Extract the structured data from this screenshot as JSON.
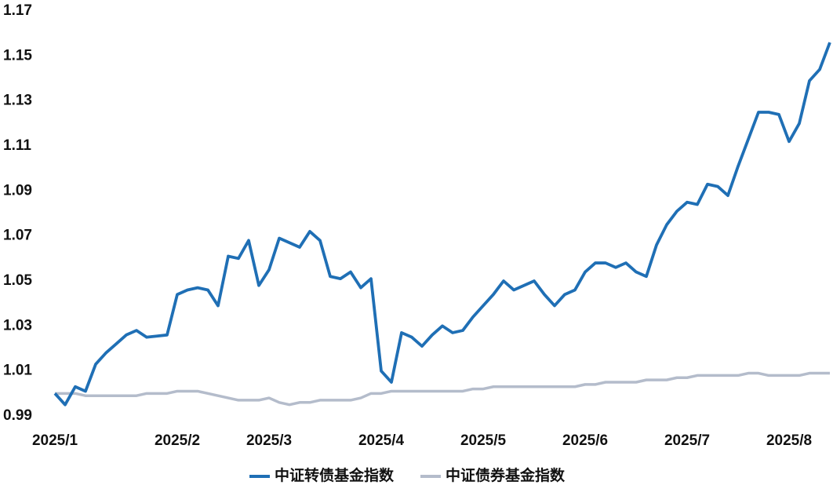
{
  "chart_data": {
    "type": "line",
    "categories": [
      "2025/1",
      null,
      null,
      null,
      null,
      null,
      null,
      null,
      null,
      null,
      null,
      null,
      "2025/2",
      null,
      null,
      null,
      null,
      null,
      null,
      null,
      null,
      "2025/3",
      null,
      null,
      null,
      null,
      null,
      null,
      null,
      null,
      null,
      null,
      "2025/4",
      null,
      null,
      null,
      null,
      null,
      null,
      null,
      null,
      null,
      "2025/5",
      null,
      null,
      null,
      null,
      null,
      null,
      null,
      null,
      null,
      "2025/6",
      null,
      null,
      null,
      null,
      null,
      null,
      null,
      null,
      null,
      "2025/7",
      null,
      null,
      null,
      null,
      null,
      null,
      null,
      null,
      null,
      "2025/8",
      null,
      null,
      null,
      null
    ],
    "series": [
      {
        "name": "中证转债基金指数",
        "color": "#1f6fb5",
        "values": [
          1.0,
          0.995,
          1.003,
          1.001,
          1.013,
          1.018,
          1.022,
          1.026,
          1.028,
          1.025,
          1.0255,
          1.026,
          1.044,
          1.046,
          1.047,
          1.046,
          1.039,
          1.061,
          1.06,
          1.068,
          1.048,
          1.055,
          1.069,
          1.067,
          1.065,
          1.072,
          1.068,
          1.052,
          1.051,
          1.054,
          1.047,
          1.051,
          1.01,
          1.005,
          1.027,
          1.025,
          1.021,
          1.026,
          1.03,
          1.027,
          1.028,
          1.034,
          1.039,
          1.044,
          1.05,
          1.046,
          1.048,
          1.05,
          1.044,
          1.039,
          1.044,
          1.046,
          1.054,
          1.058,
          1.058,
          1.056,
          1.058,
          1.054,
          1.052,
          1.066,
          1.075,
          1.081,
          1.085,
          1.084,
          1.093,
          1.092,
          1.088,
          1.101,
          1.113,
          1.125,
          1.125,
          1.124,
          1.112,
          1.12,
          1.139,
          1.144,
          1.156
        ]
      },
      {
        "name": "中证债券基金指数",
        "color": "#b4bccb",
        "values": [
          1.0,
          1.0,
          1.0,
          0.999,
          0.999,
          0.999,
          0.999,
          0.999,
          0.999,
          1.0,
          1.0,
          1.0,
          1.001,
          1.001,
          1.001,
          1.0,
          0.999,
          0.998,
          0.997,
          0.997,
          0.997,
          0.998,
          0.996,
          0.995,
          0.996,
          0.996,
          0.997,
          0.997,
          0.997,
          0.997,
          0.998,
          1.0,
          1.0,
          1.001,
          1.001,
          1.001,
          1.001,
          1.001,
          1.001,
          1.001,
          1.001,
          1.002,
          1.002,
          1.003,
          1.003,
          1.003,
          1.003,
          1.003,
          1.003,
          1.003,
          1.003,
          1.003,
          1.004,
          1.004,
          1.005,
          1.005,
          1.005,
          1.005,
          1.006,
          1.006,
          1.006,
          1.007,
          1.007,
          1.008,
          1.008,
          1.008,
          1.008,
          1.008,
          1.009,
          1.009,
          1.008,
          1.008,
          1.008,
          1.008,
          1.009,
          1.009,
          1.009
        ]
      }
    ],
    "ylim": [
      0.99,
      1.17
    ],
    "yticks": [
      0.99,
      1.01,
      1.03,
      1.05,
      1.07,
      1.09,
      1.11,
      1.13,
      1.15,
      1.17
    ]
  }
}
